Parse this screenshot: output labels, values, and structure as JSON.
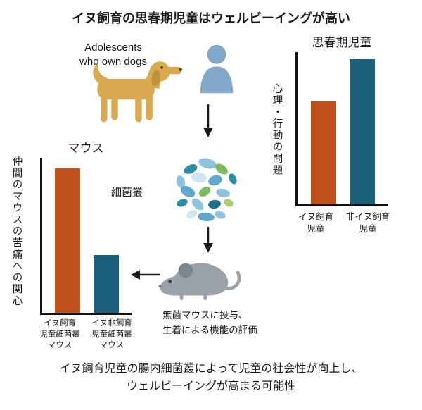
{
  "page": {
    "title": "イヌ飼育の思春期児童はウェルビーイングが高い",
    "caption": "イヌ飼育児童の腸内細菌叢によって児童の社会性が向上し、\nウェルビーイングが高まる可能性"
  },
  "flow": {
    "adolescents_label": "Adolescents\nwho own dogs",
    "microbiome_label": "細菌叢",
    "mouse_note": "無菌マウスに投与、\n生着による機能の評価"
  },
  "colors": {
    "bar_orange": "#C0511C",
    "bar_teal": "#1B5F7A",
    "dog": "#D9AA52",
    "person": "#82A9C9",
    "mouse": "#9AA1A8",
    "axis": "#111111",
    "text": "#1a1a1a"
  },
  "chart_data": [
    {
      "type": "bar",
      "title": "マウス",
      "ylabel": "仲間のマウスの苦痛への関心",
      "categories": [
        "イヌ飼育\n児童細菌叢\nマウス",
        "イヌ非飼育\n児童細菌叢\nマウス"
      ],
      "values": [
        0.93,
        0.375
      ],
      "colors": [
        "#C0511C",
        "#1B5F7A"
      ],
      "ylim": [
        0,
        1
      ],
      "grid": false,
      "legend": "none"
    },
    {
      "type": "bar",
      "title": "思春期児童",
      "ylabel": "心理・行動の問題",
      "categories": [
        "イヌ飼育\n児童",
        "非イヌ飼育\n児童"
      ],
      "values": [
        0.675,
        0.955
      ],
      "colors": [
        "#C0511C",
        "#1B5F7A"
      ],
      "ylim": [
        0,
        1
      ],
      "grid": false,
      "legend": "none"
    }
  ]
}
